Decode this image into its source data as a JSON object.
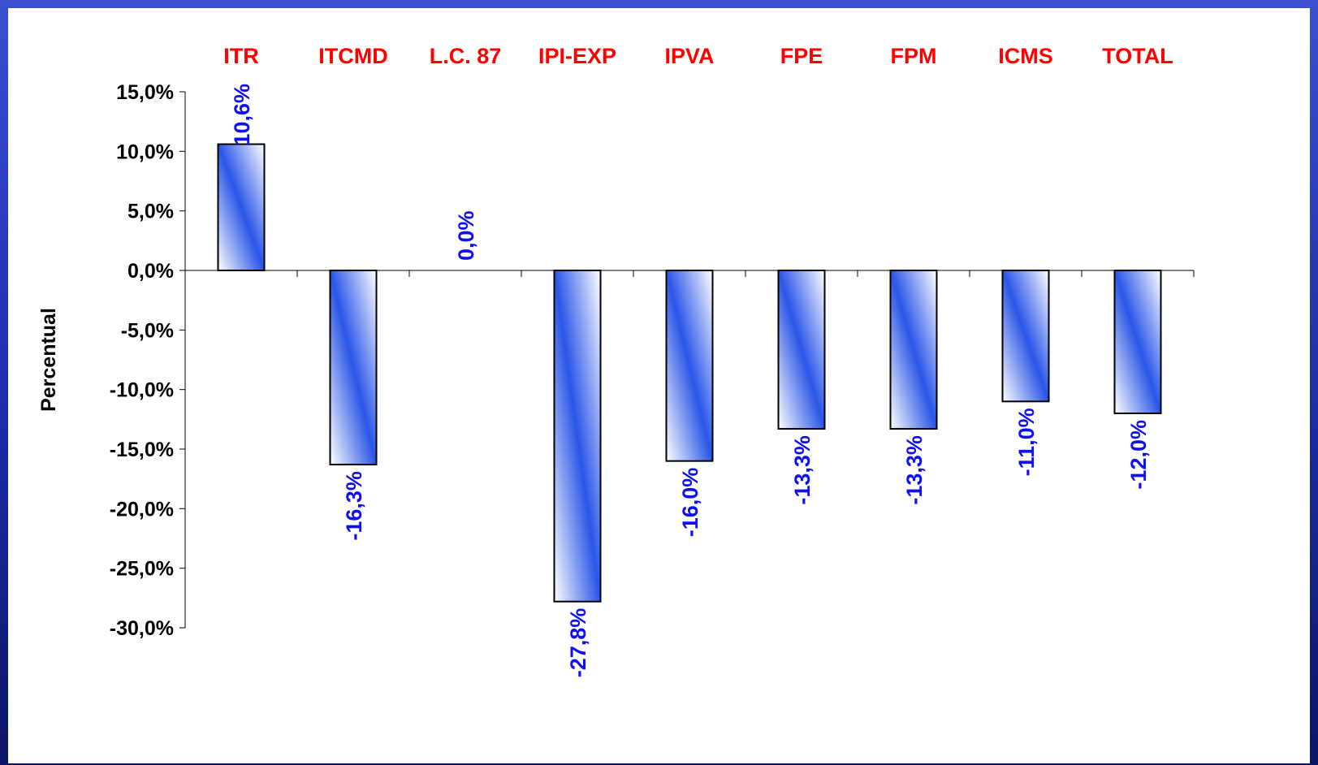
{
  "chart_data": {
    "type": "bar",
    "categories": [
      "ITR",
      "ITCMD",
      "L.C. 87",
      "IPI-EXP",
      "IPVA",
      "FPE",
      "FPM",
      "ICMS",
      "TOTAL"
    ],
    "values": [
      10.6,
      -16.3,
      0.0,
      -27.8,
      -16.0,
      -13.3,
      -13.3,
      -11.0,
      -12.0
    ],
    "data_labels": [
      "10,6%",
      "-16,3%",
      "0,0%",
      "-27,8%",
      "-16,0%",
      "-13,3%",
      "-13,3%",
      "-11,0%",
      "-12,0%"
    ],
    "title": "",
    "xlabel": "",
    "ylabel": "Percentual",
    "ylim": [
      -30,
      15
    ],
    "yticks": [
      15,
      10,
      5,
      0,
      -5,
      -10,
      -15,
      -20,
      -25,
      -30
    ],
    "ytick_labels": [
      "15,0%",
      "10,0%",
      "5,0%",
      "0,0%",
      "-5,0%",
      "-10,0%",
      "-15,0%",
      "-20,0%",
      "-25,0%",
      "-30,0%"
    ],
    "grid": false,
    "legend": "none",
    "colors": {
      "category_label": "#ff0000",
      "data_label": "#1010ee",
      "bar_fill_dark": "#2a55e8",
      "bar_fill_light": "#ffffff",
      "axis": "#000000",
      "frame": "#1c2ba8"
    }
  }
}
